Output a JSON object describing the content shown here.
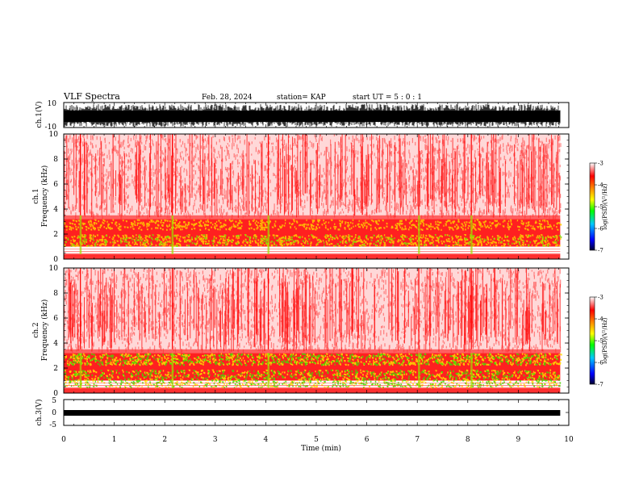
{
  "header": {
    "title": "VLF Spectra",
    "date": "Feb. 28, 2024",
    "station": "station= KAP",
    "start": "start  UT =   5  : 0   : 1"
  },
  "chart_data": [
    {
      "type": "line",
      "panel": "ch1-waveform",
      "ylabel": "ch.1(V)",
      "ylim": [
        -10,
        10
      ],
      "yticklabels": [
        "10",
        "-10"
      ],
      "x_units": "min",
      "xlim": [
        0,
        10
      ],
      "data_end": 9.83,
      "color": "#000000"
    },
    {
      "type": "heatmap",
      "panel": "ch1-spectrogram",
      "ylabel": "ch.1\nFrequency  (kHz)",
      "ylim": [
        0,
        10
      ],
      "yticks": [
        0,
        2,
        4,
        6,
        8,
        10
      ],
      "xlim": [
        0,
        10
      ],
      "data_end": 9.83,
      "colorbar": {
        "label": "log(PSD)(V²/Hz)",
        "range": [
          -7,
          -3
        ],
        "ticks": [
          -3,
          -4,
          -5,
          -6,
          -7
        ]
      }
    },
    {
      "type": "heatmap",
      "panel": "ch2-spectrogram",
      "ylabel": "ch.2\nFrequency  (kHz)",
      "ylim": [
        0,
        10
      ],
      "yticks": [
        0,
        2,
        4,
        6,
        8,
        10
      ],
      "xlim": [
        0,
        10
      ],
      "data_end": 9.83,
      "colorbar": {
        "label": "log(PSD)(V²/Hz)",
        "range": [
          -7,
          -3
        ],
        "ticks": [
          -3,
          -4,
          -5,
          -6,
          -7
        ]
      }
    },
    {
      "type": "line",
      "panel": "ch3-waveform",
      "ylabel": "ch.3(V)",
      "ylim": [
        -5,
        5
      ],
      "yticks": [
        5,
        0,
        -5
      ],
      "yticklabels": [
        "5",
        "0",
        "-5"
      ],
      "xlabel": "Time  (min)",
      "xlim": [
        0,
        10
      ],
      "xticks": [
        0,
        1,
        2,
        3,
        4,
        5,
        6,
        7,
        8,
        9,
        10
      ],
      "data_end": 9.83,
      "color": "#000000"
    }
  ],
  "colors": {
    "spectrum_low": "#0000ff",
    "spectrum_mid": "#00ff00",
    "spectrum_high": "#ff0000"
  }
}
